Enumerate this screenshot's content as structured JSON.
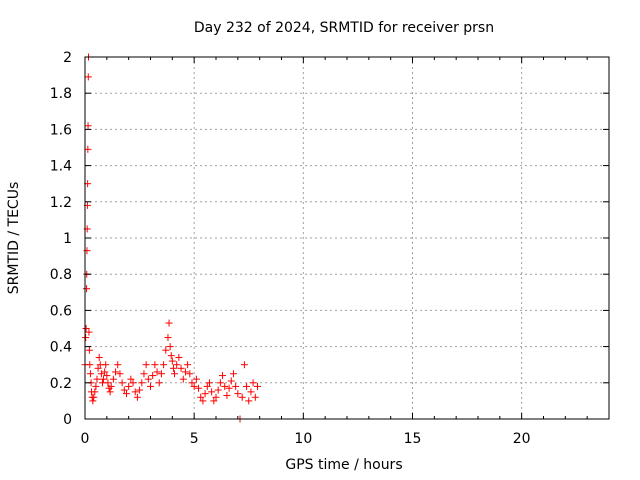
{
  "chart_data": {
    "type": "scatter",
    "title": "Day 232 of 2024, SRMTID for receiver prsn",
    "xlabel": "GPS time / hours",
    "ylabel": "SRMTID / TECUs",
    "xlim": [
      0,
      24
    ],
    "ylim": [
      0,
      2
    ],
    "xticks": [
      0,
      5,
      10,
      15,
      20
    ],
    "xtick_labels": [
      "0",
      "5",
      "10",
      "15",
      "20"
    ],
    "yticks": [
      0,
      0.2,
      0.4,
      0.6,
      0.8,
      1,
      1.2,
      1.4,
      1.6,
      1.8,
      2
    ],
    "ytick_labels": [
      "0",
      "0.2",
      "0.4",
      "0.6",
      "0.8",
      "1",
      "1.2",
      "1.4",
      "1.6",
      "1.8",
      "2"
    ],
    "grid": true,
    "marker": "+",
    "series": [
      {
        "name": "SRMTID",
        "color": "#ff0000",
        "x": [
          0.0,
          0.03,
          0.05,
          0.07,
          0.08,
          0.09,
          0.1,
          0.11,
          0.12,
          0.13,
          0.14,
          0.15,
          0.16,
          0.18,
          0.2,
          0.22,
          0.25,
          0.28,
          0.3,
          0.33,
          0.36,
          0.4,
          0.45,
          0.5,
          0.55,
          0.6,
          0.65,
          0.7,
          0.75,
          0.8,
          0.85,
          0.9,
          0.95,
          1.0,
          1.05,
          1.1,
          1.15,
          1.2,
          1.3,
          1.4,
          1.5,
          1.6,
          1.7,
          1.8,
          1.9,
          2.0,
          2.1,
          2.2,
          2.3,
          2.4,
          2.5,
          2.6,
          2.7,
          2.8,
          2.9,
          3.0,
          3.1,
          3.2,
          3.3,
          3.4,
          3.5,
          3.6,
          3.7,
          3.8,
          3.85,
          3.9,
          3.95,
          4.0,
          4.05,
          4.1,
          4.2,
          4.3,
          4.4,
          4.5,
          4.6,
          4.7,
          4.8,
          4.9,
          5.0,
          5.1,
          5.2,
          5.3,
          5.4,
          5.5,
          5.6,
          5.7,
          5.8,
          5.9,
          6.0,
          6.1,
          6.2,
          6.3,
          6.4,
          6.5,
          6.6,
          6.7,
          6.8,
          6.9,
          7.0,
          7.1,
          7.2,
          7.3,
          7.4,
          7.5,
          7.6,
          7.7,
          7.8,
          7.9
        ],
        "y": [
          0.3,
          0.45,
          0.5,
          0.72,
          0.8,
          0.93,
          1.05,
          1.18,
          1.3,
          1.49,
          1.62,
          1.89,
          2.0,
          0.48,
          0.38,
          0.3,
          0.25,
          0.2,
          0.15,
          0.12,
          0.1,
          0.12,
          0.15,
          0.18,
          0.22,
          0.28,
          0.34,
          0.3,
          0.25,
          0.2,
          0.22,
          0.26,
          0.3,
          0.24,
          0.2,
          0.17,
          0.15,
          0.18,
          0.22,
          0.26,
          0.3,
          0.25,
          0.2,
          0.16,
          0.14,
          0.18,
          0.22,
          0.2,
          0.15,
          0.12,
          0.16,
          0.2,
          0.25,
          0.3,
          0.22,
          0.18,
          0.24,
          0.3,
          0.26,
          0.2,
          0.25,
          0.3,
          0.38,
          0.45,
          0.53,
          0.4,
          0.35,
          0.32,
          0.28,
          0.25,
          0.3,
          0.34,
          0.28,
          0.22,
          0.26,
          0.3,
          0.25,
          0.2,
          0.18,
          0.22,
          0.17,
          0.12,
          0.1,
          0.14,
          0.18,
          0.2,
          0.15,
          0.1,
          0.12,
          0.16,
          0.2,
          0.24,
          0.18,
          0.13,
          0.17,
          0.21,
          0.25,
          0.18,
          0.14,
          0.0,
          0.12,
          0.3,
          0.18,
          0.1,
          0.15,
          0.2,
          0.12,
          0.18
        ]
      }
    ]
  }
}
